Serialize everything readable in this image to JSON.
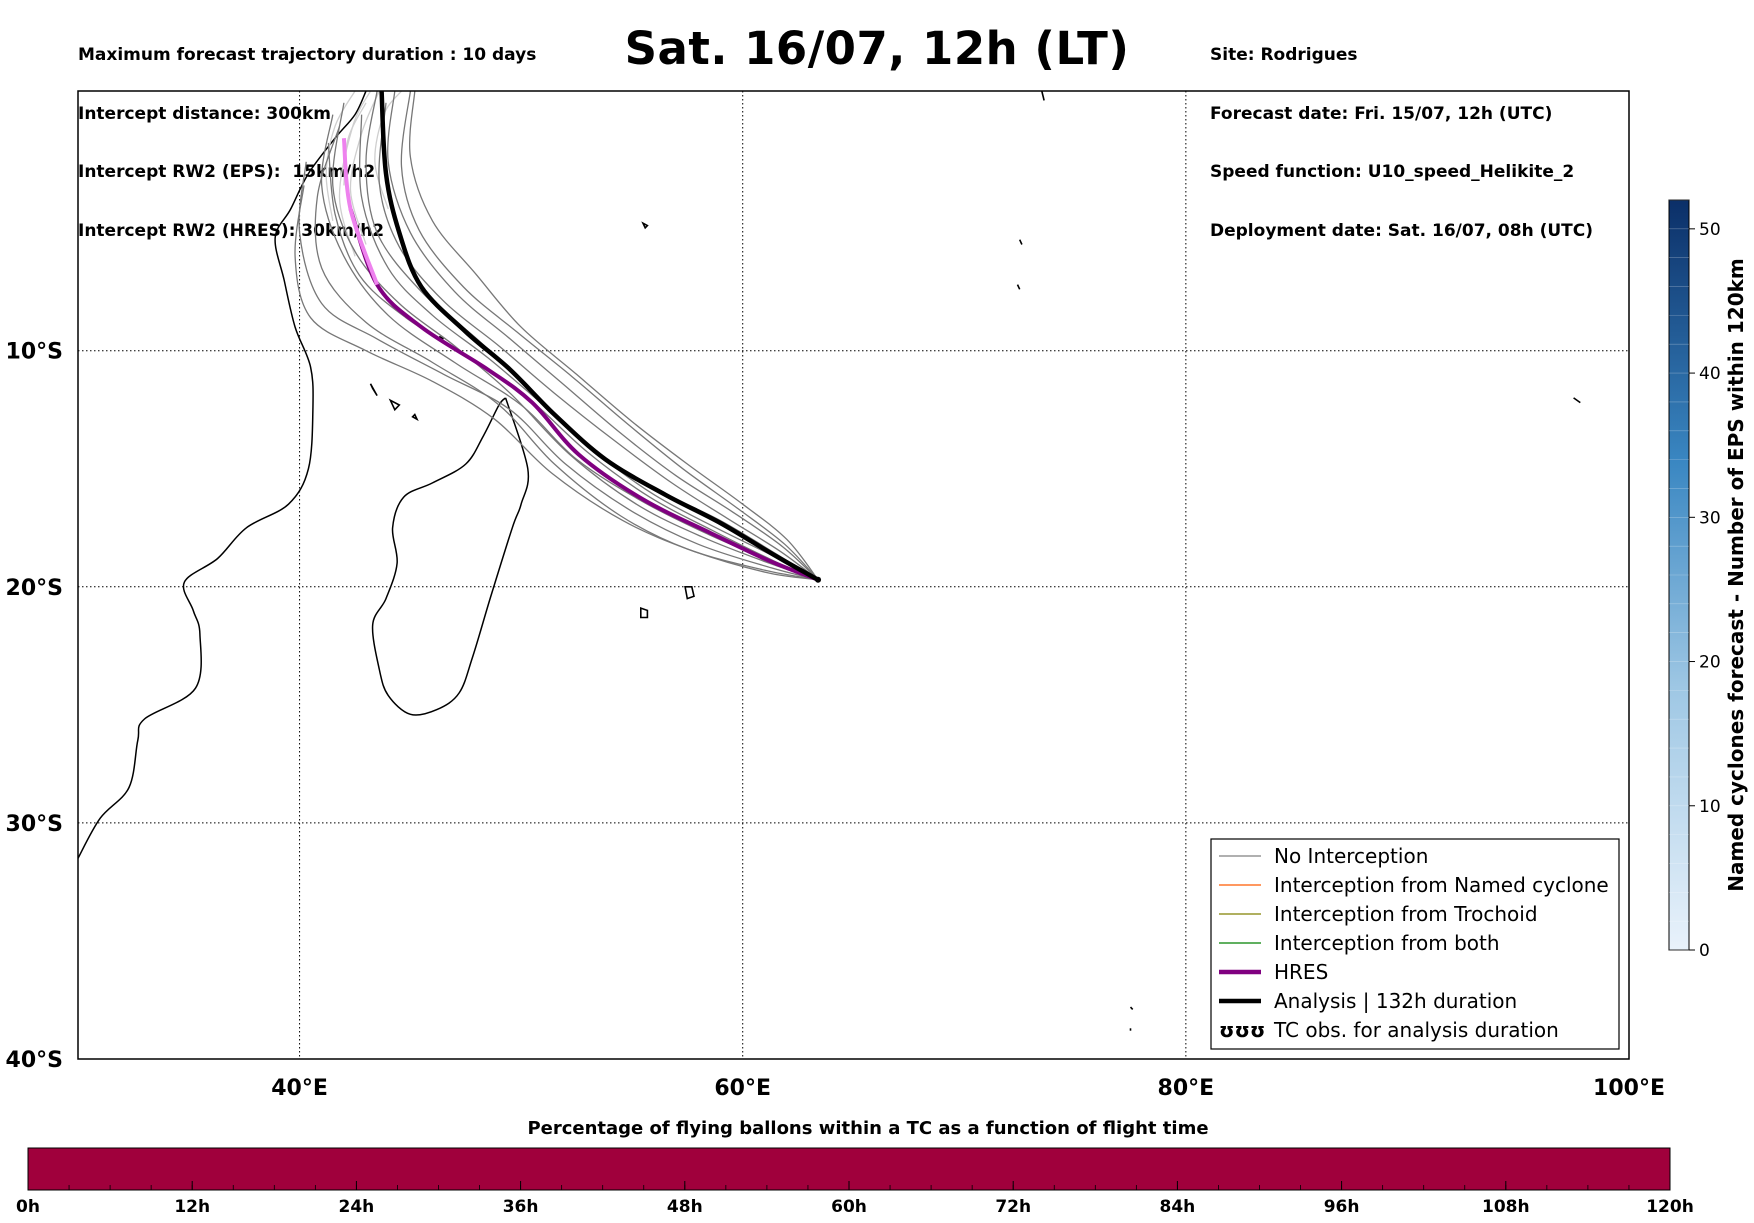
{
  "header": {
    "left": [
      "Maximum forecast trajectory duration : 10 days",
      "Intercept distance: 300km",
      "Intercept RW2 (EPS):  15km/h2",
      "Intercept RW2 (HRES): 30km/h2"
    ],
    "title": "Sat. 16/07, 12h (LT)",
    "right": [
      "Site: Rodrigues",
      "Forecast date: Fri. 15/07, 12h (UTC)",
      "Speed function: U10_speed_Helikite_2",
      "Deployment date: Sat. 16/07, 08h (UTC)"
    ]
  },
  "map": {
    "lon_range": [
      30,
      100
    ],
    "lat_range": [
      -40,
      1
    ],
    "lon_ticks": [
      {
        "v": 40,
        "label": "40°E"
      },
      {
        "v": 60,
        "label": "60°E"
      },
      {
        "v": 80,
        "label": "80°E"
      },
      {
        "v": 100,
        "label": "100°E"
      }
    ],
    "lat_ticks": [
      {
        "v": -10,
        "label": "10°S"
      },
      {
        "v": -20,
        "label": "20°S"
      },
      {
        "v": -30,
        "label": "30°S"
      },
      {
        "v": -40,
        "label": "40°S"
      }
    ],
    "grid": true,
    "release_point": {
      "lon": 63.4,
      "lat": -19.7
    },
    "analysis": [
      [
        63.4,
        -19.7
      ],
      [
        61.5,
        -18.7
      ],
      [
        59,
        -17.3
      ],
      [
        56.5,
        -16.1
      ],
      [
        53.8,
        -14.6
      ],
      [
        51.5,
        -12.7
      ],
      [
        49.5,
        -10.8
      ],
      [
        47.5,
        -9.2
      ],
      [
        45.5,
        -7.3
      ],
      [
        44.5,
        -5.0
      ],
      [
        43.9,
        -2.5
      ],
      [
        43.7,
        1
      ]
    ],
    "hres": [
      [
        63.4,
        -19.7
      ],
      [
        61.2,
        -18.9
      ],
      [
        58.5,
        -17.7
      ],
      [
        55.5,
        -16.3
      ],
      [
        52.6,
        -14.4
      ],
      [
        50.5,
        -12.2
      ],
      [
        48.5,
        -10.8
      ],
      [
        45.5,
        -9.0
      ],
      [
        43.5,
        -7.2
      ],
      [
        42.3,
        -4.0
      ],
      [
        42.0,
        -1.0
      ]
    ],
    "eps_tracks": [
      [
        [
          63.4,
          -19.7
        ],
        [
          61.5,
          -19.0
        ],
        [
          58.5,
          -17.8
        ],
        [
          55.5,
          -16.4
        ],
        [
          52.5,
          -14.6
        ],
        [
          50,
          -12.3
        ],
        [
          47,
          -10.5
        ],
        [
          44,
          -8.5
        ],
        [
          42,
          -6.0
        ],
        [
          41,
          -3.0
        ],
        [
          41.5,
          0.0
        ]
      ],
      [
        [
          63.4,
          -19.7
        ],
        [
          61.5,
          -18.6
        ],
        [
          59,
          -17.2
        ],
        [
          56,
          -15.8
        ],
        [
          53,
          -14.0
        ],
        [
          50.5,
          -11.7
        ],
        [
          48,
          -9.5
        ],
        [
          45.5,
          -7.5
        ],
        [
          43.5,
          -5.0
        ],
        [
          43,
          -2.0
        ],
        [
          43.5,
          1
        ]
      ],
      [
        [
          63.4,
          -19.7
        ],
        [
          61.3,
          -19.2
        ],
        [
          58,
          -18.2
        ],
        [
          55,
          -16.8
        ],
        [
          52,
          -14.8
        ],
        [
          49.5,
          -12.5
        ],
        [
          46.5,
          -11.0
        ],
        [
          43.5,
          -9.5
        ],
        [
          41,
          -8.0
        ],
        [
          40,
          -5.0
        ],
        [
          40.3,
          -2.0
        ]
      ],
      [
        [
          63.4,
          -19.7
        ],
        [
          61.8,
          -18.3
        ],
        [
          59.5,
          -16.8
        ],
        [
          57,
          -15.3
        ],
        [
          54.5,
          -13.5
        ],
        [
          52,
          -11.5
        ],
        [
          49.5,
          -9.5
        ],
        [
          47,
          -7.5
        ],
        [
          45,
          -5.0
        ],
        [
          44,
          -2.0
        ],
        [
          44.3,
          1
        ]
      ],
      [
        [
          63.4,
          -19.7
        ],
        [
          61,
          -19.3
        ],
        [
          57.5,
          -18.4
        ],
        [
          54.5,
          -17.0
        ],
        [
          51.5,
          -14.8
        ],
        [
          49,
          -12.3
        ],
        [
          46,
          -10.5
        ],
        [
          43,
          -8.8
        ],
        [
          41,
          -6.5
        ],
        [
          40.8,
          -3.5
        ],
        [
          41.8,
          -0.5
        ]
      ],
      [
        [
          63.4,
          -19.7
        ],
        [
          61.6,
          -18.8
        ],
        [
          58.8,
          -17.5
        ],
        [
          56,
          -16.1
        ],
        [
          53.5,
          -14.4
        ],
        [
          51,
          -12.3
        ],
        [
          48.5,
          -10.3
        ],
        [
          46,
          -8.5
        ],
        [
          44,
          -6.5
        ],
        [
          42.8,
          -3.5
        ],
        [
          42.8,
          0
        ]
      ],
      [
        [
          63.4,
          -19.7
        ],
        [
          62,
          -18.0
        ],
        [
          60,
          -16.5
        ],
        [
          57.5,
          -14.8
        ],
        [
          55,
          -13.0
        ],
        [
          52.5,
          -11.0
        ],
        [
          50,
          -9.0
        ],
        [
          48,
          -6.8
        ],
        [
          46,
          -4.5
        ],
        [
          45,
          -1.8
        ],
        [
          45.2,
          1
        ]
      ],
      [
        [
          63.4,
          -19.7
        ],
        [
          61.2,
          -19.0
        ],
        [
          58.2,
          -17.9
        ],
        [
          55.2,
          -16.5
        ],
        [
          52.2,
          -14.4
        ],
        [
          49.5,
          -11.8
        ],
        [
          47,
          -9.8
        ],
        [
          44.5,
          -8.0
        ],
        [
          42.5,
          -5.8
        ],
        [
          41.5,
          -3.0
        ],
        [
          42,
          0.5
        ]
      ],
      [
        [
          63.4,
          -19.7
        ],
        [
          61.4,
          -18.9
        ],
        [
          58.6,
          -17.6
        ],
        [
          55.8,
          -16.2
        ],
        [
          53,
          -14.3
        ],
        [
          50.3,
          -12.0
        ],
        [
          47.5,
          -10.2
        ],
        [
          44.8,
          -8.6
        ],
        [
          42.7,
          -6.8
        ],
        [
          41.6,
          -4.2
        ],
        [
          41.3,
          -1.2
        ]
      ],
      [
        [
          63.4,
          -19.7
        ],
        [
          61.7,
          -18.5
        ],
        [
          59.3,
          -17.1
        ],
        [
          56.8,
          -15.6
        ],
        [
          54.2,
          -13.8
        ],
        [
          51.5,
          -11.8
        ],
        [
          49,
          -9.8
        ],
        [
          46.5,
          -7.9
        ],
        [
          44.5,
          -5.6
        ],
        [
          43.6,
          -2.9
        ],
        [
          43.9,
          0.5
        ]
      ],
      [
        [
          63.4,
          -19.7
        ],
        [
          61.1,
          -19.4
        ],
        [
          57.8,
          -18.5
        ],
        [
          54.6,
          -17.2
        ],
        [
          51.4,
          -15.2
        ],
        [
          48.8,
          -12.9
        ],
        [
          46,
          -11.3
        ],
        [
          43,
          -10.0
        ],
        [
          40.5,
          -8.6
        ],
        [
          39.8,
          -6.0
        ],
        [
          40.2,
          -3.0
        ]
      ],
      [
        [
          63.4,
          -19.7
        ],
        [
          61.9,
          -18.2
        ],
        [
          59.8,
          -16.7
        ],
        [
          57.3,
          -15.0
        ],
        [
          54.8,
          -13.1
        ],
        [
          52.3,
          -11.1
        ],
        [
          49.8,
          -9.2
        ],
        [
          47.4,
          -7.3
        ],
        [
          45.4,
          -4.9
        ],
        [
          44.6,
          -2.2
        ],
        [
          45,
          1
        ]
      ]
    ],
    "light_tracks": [
      [
        [
          42.5,
          -6.0
        ],
        [
          41.8,
          -3.5
        ],
        [
          42.4,
          -0.5
        ],
        [
          43.2,
          1
        ]
      ],
      [
        [
          43.0,
          -5.5
        ],
        [
          42.3,
          -3.2
        ],
        [
          42.8,
          -0.8
        ],
        [
          43.6,
          1
        ]
      ],
      [
        [
          41.5,
          -4.5
        ],
        [
          41.2,
          -2.5
        ],
        [
          41.6,
          -0.5
        ],
        [
          42.5,
          1
        ]
      ],
      [
        [
          44.0,
          -4.0
        ],
        [
          43.4,
          -2.0
        ],
        [
          43.8,
          0.0
        ],
        [
          44.6,
          1
        ]
      ],
      [
        [
          42.0,
          -3.0
        ],
        [
          42.2,
          -1.0
        ],
        [
          43.0,
          0.5
        ]
      ]
    ],
    "islands": [
      [
        [
          44.1,
          -12.1
        ],
        [
          44.5,
          -12.3
        ],
        [
          44.3,
          -12.5
        ]
      ],
      [
        [
          43.2,
          -11.4
        ],
        [
          43.5,
          -11.9
        ],
        [
          43.3,
          -11.6
        ]
      ],
      [
        [
          45.1,
          -12.8
        ],
        [
          45.3,
          -12.9
        ],
        [
          45.2,
          -12.7
        ]
      ],
      [
        [
          55.4,
          -20.9
        ],
        [
          55.7,
          -21.0
        ],
        [
          55.7,
          -21.3
        ],
        [
          55.4,
          -21.3
        ]
      ],
      [
        [
          57.4,
          -20.0
        ],
        [
          57.7,
          -20.0
        ],
        [
          57.8,
          -20.4
        ],
        [
          57.5,
          -20.5
        ]
      ],
      [
        [
          55.5,
          -4.6
        ],
        [
          55.7,
          -4.7
        ],
        [
          55.6,
          -4.8
        ]
      ],
      [
        [
          72.5,
          -5.3
        ],
        [
          72.6,
          -5.5
        ]
      ],
      [
        [
          72.4,
          -7.2
        ],
        [
          72.5,
          -7.4
        ]
      ],
      [
        [
          73.5,
          1
        ],
        [
          73.6,
          0.6
        ]
      ],
      [
        [
          97.5,
          -12.0
        ],
        [
          97.8,
          -12.2
        ]
      ],
      [
        [
          77.5,
          -37.8
        ],
        [
          77.6,
          -37.9
        ]
      ],
      [
        [
          77.5,
          -38.7
        ],
        [
          77.5,
          -38.8
        ]
      ],
      [
        [
          46.3,
          -9.4
        ],
        [
          46.5,
          -9.5
        ]
      ]
    ],
    "coast_africa": [
      [
        30,
        -31.5
      ],
      [
        31,
        -29.8
      ],
      [
        32.3,
        -28.5
      ],
      [
        32.7,
        -26.5
      ],
      [
        33.0,
        -25.6
      ],
      [
        35.3,
        -24.3
      ],
      [
        35.5,
        -22.0
      ],
      [
        35.2,
        -21.0
      ],
      [
        34.8,
        -19.8
      ],
      [
        36.3,
        -18.8
      ],
      [
        37.6,
        -17.5
      ],
      [
        39.5,
        -16.5
      ],
      [
        40.4,
        -15.0
      ],
      [
        40.6,
        -12.5
      ],
      [
        40.5,
        -10.7
      ],
      [
        39.8,
        -9.0
      ],
      [
        39.3,
        -7.0
      ],
      [
        38.9,
        -5.2
      ],
      [
        39.6,
        -4.0
      ],
      [
        40.4,
        -2.5
      ],
      [
        41.6,
        -1.0
      ],
      [
        42.5,
        0.0
      ],
      [
        43.0,
        1
      ]
    ],
    "coast_madagascar": [
      [
        49.3,
        -12.0
      ],
      [
        50.3,
        -15.0
      ],
      [
        50.0,
        -16.5
      ],
      [
        49.6,
        -17.5
      ],
      [
        48.6,
        -20.5
      ],
      [
        47.8,
        -23.0
      ],
      [
        47.2,
        -24.5
      ],
      [
        46.2,
        -25.2
      ],
      [
        45.0,
        -25.4
      ],
      [
        44.0,
        -24.6
      ],
      [
        43.6,
        -23.5
      ],
      [
        43.3,
        -21.6
      ],
      [
        43.9,
        -20.5
      ],
      [
        44.4,
        -19.0
      ],
      [
        44.2,
        -17.5
      ],
      [
        44.7,
        -16.2
      ],
      [
        46.0,
        -15.6
      ],
      [
        47.5,
        -14.8
      ],
      [
        48.3,
        -13.6
      ],
      [
        49.0,
        -12.3
      ],
      [
        49.3,
        -12.0
      ]
    ]
  },
  "legend": {
    "items": [
      {
        "label": "No Interception",
        "color": "#808080",
        "style": "thin"
      },
      {
        "label": "Interception from Named cyclone",
        "color": "#ff5a00",
        "style": "thin"
      },
      {
        "label": "Interception from Trochoid",
        "color": "#808000",
        "style": "thin"
      },
      {
        "label": "Interception from both",
        "color": "#008000",
        "style": "thin"
      },
      {
        "label": "HRES",
        "color": "#800080",
        "style": "thick"
      },
      {
        "label": "Analysis | 132h duration",
        "color": "#000000",
        "style": "thick"
      },
      {
        "label": "TC obs. for analysis duration",
        "color": "#000000",
        "style": "symbol",
        "symbol": "ʊʊʊ"
      }
    ]
  },
  "colorbar_right": {
    "title": "Named cyclones forecast - Number of EPS within 120km",
    "min": 0,
    "max": 52,
    "ticks": [
      "0",
      "10",
      "20",
      "30",
      "40",
      "50"
    ],
    "color_low": "#e9f2fb",
    "color_high": "#0b2f68"
  },
  "colorbar_bottom": {
    "title": "Percentage of flying ballons within a TC as a function of flight time",
    "ticks": [
      "0h",
      "12h",
      "24h",
      "36h",
      "48h",
      "60h",
      "72h",
      "84h",
      "96h",
      "108h",
      "120h"
    ],
    "fill_color": "#a0003c"
  }
}
